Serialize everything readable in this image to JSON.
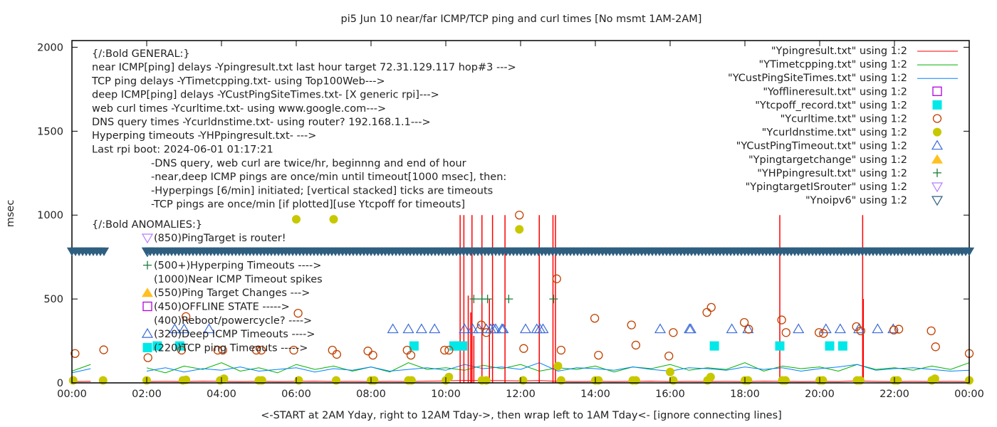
{
  "chart_data": {
    "type": "scatter",
    "title": "pi5 Jun 10  near/far ICMP/TCP ping and curl times [No msmt 1AM-2AM]",
    "xlabel": "<-START at 2AM Yday, right to 12AM Tday->, then wrap left to 1AM Tday<- [ignore connecting lines]",
    "ylabel": "msec",
    "xlim": [
      "00:00",
      "24:00"
    ],
    "ylim": [
      0,
      2040
    ],
    "x_ticks": [
      "00:00",
      "02:00",
      "04:00",
      "06:00",
      "08:00",
      "10:00",
      "12:00",
      "14:00",
      "16:00",
      "18:00",
      "20:00",
      "22:00",
      "00:00"
    ],
    "y_ticks": [
      0,
      500,
      1000,
      1500,
      2000
    ],
    "grid": false,
    "legend_placement": "top-right",
    "annotations_general": [
      "{/:Bold GENERAL:}",
      "near ICMP[ping] delays -Ypingresult.txt last hour target 72.31.129.117 hop#3 --->",
      "TCP ping delays -YTimetcpping.txt- using Top100Web--->",
      "deep ICMP[ping] delays -YCustPingSiteTimes.txt- [X generic rpi]--->",
      "web curl times -Ycurltime.txt- using www.google.com--->",
      "DNS query times -Ycurldnstime.txt- using router? 192.168.1.1--->",
      "Hyperping timeouts -YHPpingresult.txt- --->",
      "Last rpi boot: 2024-06-01 01:17:21"
    ],
    "annotations_notes": [
      "-DNS query, web curl are twice/hr, beginnng and end of hour",
      "-near,deep ICMP pings are once/min until timeout[1000 msec], then:",
      "  -Hyperpings [6/min] initiated; [vertical stacked] ticks are timeouts",
      "-TCP pings are once/min [if plotted][use Ytcpoff for timeouts]"
    ],
    "annotations_anomalies_title": "{/:Bold ANOMALIES:}",
    "annotations_anomalies": [
      {
        "marker": "triangle-down-open",
        "color": "#b47cff",
        "text": "(850)PingTarget is router!"
      },
      {
        "marker": "triangle-down-open",
        "color": "#2f5f80",
        "text": ""
      },
      {
        "marker": "plus",
        "color": "#1a7a3a",
        "text": "(500+)Hyperping Timeouts ---->"
      },
      {
        "marker": "none",
        "color": "",
        "text": "(1000)Near ICMP Timeout spikes"
      },
      {
        "marker": "triangle-up-filled",
        "color": "#ffc020",
        "text": "(550)Ping Target Changes --->"
      },
      {
        "marker": "square-open",
        "color": "#b000e0",
        "text": "(450)OFFLINE STATE ----->"
      },
      {
        "marker": "none",
        "color": "",
        "text": "(400)Reboot/powercycle? ---->"
      },
      {
        "marker": "triangle-up-open",
        "color": "#3a6ad8",
        "text": "(320)Deep ICMP Timeouts ---->"
      },
      {
        "marker": "square-filled",
        "color": "#00e8e8",
        "text": "(220)TCP ping Timeouts ----->"
      }
    ],
    "legend": [
      {
        "label": "\"Ypingresult.txt\" using 1:2",
        "style": "line",
        "color": "#ff0000"
      },
      {
        "label": "\"YTimetcpping.txt\" using 1:2",
        "style": "line",
        "color": "#00b000"
      },
      {
        "label": "\"YCustPingSiteTimes.txt\" using 1:2",
        "style": "line",
        "color": "#0080ff"
      },
      {
        "label": "\"Yofflineresult.txt\" using 1:2",
        "style": "square-open",
        "color": "#b000e0"
      },
      {
        "label": "\"Ytcpoff_record.txt\" using 1:2",
        "style": "square-filled",
        "color": "#00e8e8"
      },
      {
        "label": "\"Ycurltime.txt\" using 1:2",
        "style": "circle-open",
        "color": "#c04000"
      },
      {
        "label": "\"Ycurldnstime.txt\" using 1:2",
        "style": "circle-filled",
        "color": "#c8c800"
      },
      {
        "label": "\"YCustPingTimeout.txt\" using 1:2",
        "style": "triangle-up-open",
        "color": "#3a6ad8"
      },
      {
        "label": "\"Ypingtargetchange\" using 1:2",
        "style": "triangle-up-filled",
        "color": "#ffc020"
      },
      {
        "label": "\"YHPpingresult.txt\" using 1:2",
        "style": "plus",
        "color": "#1a7a3a"
      },
      {
        "label": "\"YpingtargetISrouter\" using 1:2",
        "style": "triangle-down-open",
        "color": "#b47cff"
      },
      {
        "label": "\"Ynoipv6\" using 1:2",
        "style": "triangle-down-open",
        "color": "#2f5f80"
      }
    ],
    "line_x": [
      "00:00",
      "00:30",
      "01:00",
      "01:30",
      "02:00",
      "02:30",
      "03:00",
      "03:30",
      "04:00",
      "04:30",
      "05:00",
      "05:30",
      "06:00",
      "06:30",
      "07:00",
      "07:30",
      "08:00",
      "08:30",
      "09:00",
      "09:30",
      "10:00",
      "10:30",
      "11:00",
      "11:30",
      "12:00",
      "12:30",
      "13:00",
      "13:30",
      "14:00",
      "14:30",
      "15:00",
      "15:30",
      "16:00",
      "16:30",
      "17:00",
      "17:30",
      "18:00",
      "18:30",
      "19:00",
      "19:30",
      "20:00",
      "20:30",
      "21:00",
      "21:30",
      "22:00",
      "22:30",
      "23:00",
      "23:30",
      "24:00"
    ],
    "series": [
      {
        "name": "\"Ypingresult.txt\" using 1:2",
        "color": "#ff0000",
        "values": [
          8,
          9,
          null,
          null,
          8,
          9,
          8,
          10,
          9,
          8,
          9,
          8,
          9,
          10,
          8,
          9,
          8,
          9,
          8,
          10,
          12,
          15,
          14,
          13,
          12,
          14,
          9,
          8,
          9,
          8,
          9,
          10,
          8,
          9,
          8,
          9,
          8,
          10,
          9,
          8,
          9,
          8,
          12,
          9,
          8,
          9,
          8,
          9,
          8
        ]
      },
      {
        "name": "\"YTimetcpping.txt\" using 1:2",
        "color": "#00b000",
        "values": [
          70,
          110,
          null,
          null,
          90,
          60,
          100,
          80,
          120,
          70,
          90,
          60,
          110,
          80,
          100,
          70,
          95,
          65,
          120,
          80,
          90,
          75,
          105,
          85,
          110,
          70,
          90,
          80,
          100,
          65,
          95,
          85,
          110,
          75,
          90,
          80,
          120,
          70,
          100,
          85,
          95,
          70,
          110,
          80,
          90,
          75,
          100,
          80,
          120
        ]
      },
      {
        "name": "\"YCustPingSiteTimes.txt\" using 1:2",
        "color": "#0080ff",
        "values": [
          60,
          85,
          null,
          null,
          70,
          90,
          65,
          85,
          75,
          95,
          70,
          80,
          90,
          65,
          85,
          75,
          95,
          70,
          80,
          90,
          75,
          110,
          85,
          95,
          80,
          120,
          70,
          90,
          85,
          75,
          95,
          80,
          70,
          90,
          85,
          75,
          95,
          80,
          90,
          70,
          85,
          95,
          110,
          75,
          85,
          90,
          80,
          70,
          75
        ]
      }
    ],
    "near_icmp_spikes": [
      {
        "x": "10:23",
        "y": 1000
      },
      {
        "x": "10:29",
        "y": 1000
      },
      {
        "x": "10:42",
        "y": 1000
      },
      {
        "x": "10:58",
        "y": 1000
      },
      {
        "x": "11:15",
        "y": 1000
      },
      {
        "x": "11:35",
        "y": 1000
      },
      {
        "x": "12:30",
        "y": 1000
      },
      {
        "x": "12:52",
        "y": 1000
      },
      {
        "x": "12:56",
        "y": 1000
      },
      {
        "x": "18:56",
        "y": 1000
      },
      {
        "x": "21:09",
        "y": 1000
      },
      {
        "x": "10:36",
        "y": 520
      },
      {
        "x": "10:40",
        "y": 420
      },
      {
        "x": "10:45",
        "y": 280
      },
      {
        "x": "11:10",
        "y": 500
      },
      {
        "x": "21:10",
        "y": 500
      }
    ],
    "curl_times": [
      {
        "x": "00:05",
        "y": 175
      },
      {
        "x": "00:51",
        "y": 197
      },
      {
        "x": "02:02",
        "y": 150
      },
      {
        "x": "02:56",
        "y": 195
      },
      {
        "x": "03:03",
        "y": 395
      },
      {
        "x": "03:54",
        "y": 195
      },
      {
        "x": "04:02",
        "y": 195
      },
      {
        "x": "04:56",
        "y": 195
      },
      {
        "x": "05:04",
        "y": 195
      },
      {
        "x": "05:56",
        "y": 195
      },
      {
        "x": "06:03",
        "y": 415
      },
      {
        "x": "06:58",
        "y": 195
      },
      {
        "x": "07:05",
        "y": 170
      },
      {
        "x": "07:55",
        "y": 190
      },
      {
        "x": "08:03",
        "y": 165
      },
      {
        "x": "08:58",
        "y": 195
      },
      {
        "x": "09:04",
        "y": 165
      },
      {
        "x": "09:58",
        "y": 195
      },
      {
        "x": "10:05",
        "y": 195
      },
      {
        "x": "10:57",
        "y": 345
      },
      {
        "x": "11:05",
        "y": 300
      },
      {
        "x": "11:58",
        "y": 1000
      },
      {
        "x": "12:05",
        "y": 205
      },
      {
        "x": "12:58",
        "y": 620
      },
      {
        "x": "13:05",
        "y": 195
      },
      {
        "x": "13:59",
        "y": 385
      },
      {
        "x": "14:05",
        "y": 165
      },
      {
        "x": "14:58",
        "y": 345
      },
      {
        "x": "15:05",
        "y": 225
      },
      {
        "x": "15:58",
        "y": 160
      },
      {
        "x": "16:05",
        "y": 300
      },
      {
        "x": "16:59",
        "y": 420
      },
      {
        "x": "17:06",
        "y": 450
      },
      {
        "x": "17:59",
        "y": 360
      },
      {
        "x": "18:06",
        "y": 320
      },
      {
        "x": "18:59",
        "y": 375
      },
      {
        "x": "19:06",
        "y": 300
      },
      {
        "x": "19:59",
        "y": 300
      },
      {
        "x": "20:06",
        "y": 295
      },
      {
        "x": "20:59",
        "y": 335
      },
      {
        "x": "21:06",
        "y": 310
      },
      {
        "x": "21:59",
        "y": 315
      },
      {
        "x": "22:07",
        "y": 320
      },
      {
        "x": "22:59",
        "y": 310
      },
      {
        "x": "23:06",
        "y": 215
      },
      {
        "x": "24:00",
        "y": 175
      }
    ],
    "dns_times": [
      {
        "x": "00:02",
        "y": 15
      },
      {
        "x": "00:50",
        "y": 15
      },
      {
        "x": "02:00",
        "y": 15
      },
      {
        "x": "02:58",
        "y": 15
      },
      {
        "x": "03:03",
        "y": 18
      },
      {
        "x": "03:58",
        "y": 15
      },
      {
        "x": "04:04",
        "y": 25
      },
      {
        "x": "05:00",
        "y": 15
      },
      {
        "x": "05:05",
        "y": 15
      },
      {
        "x": "06:00",
        "y": 975
      },
      {
        "x": "06:04",
        "y": 15
      },
      {
        "x": "07:00",
        "y": 975
      },
      {
        "x": "07:04",
        "y": 15
      },
      {
        "x": "08:00",
        "y": 15
      },
      {
        "x": "08:05",
        "y": 15
      },
      {
        "x": "09:00",
        "y": 15
      },
      {
        "x": "09:05",
        "y": 15
      },
      {
        "x": "10:00",
        "y": 15
      },
      {
        "x": "10:05",
        "y": 35
      },
      {
        "x": "10:58",
        "y": 15
      },
      {
        "x": "11:05",
        "y": 15
      },
      {
        "x": "11:58",
        "y": 915
      },
      {
        "x": "12:04",
        "y": 15
      },
      {
        "x": "13:00",
        "y": 100
      },
      {
        "x": "13:05",
        "y": 15
      },
      {
        "x": "14:00",
        "y": 15
      },
      {
        "x": "14:05",
        "y": 15
      },
      {
        "x": "15:00",
        "y": 15
      },
      {
        "x": "15:05",
        "y": 15
      },
      {
        "x": "16:00",
        "y": 65
      },
      {
        "x": "16:05",
        "y": 15
      },
      {
        "x": "17:00",
        "y": 15
      },
      {
        "x": "17:05",
        "y": 35
      },
      {
        "x": "18:00",
        "y": 15
      },
      {
        "x": "18:05",
        "y": 15
      },
      {
        "x": "19:00",
        "y": 15
      },
      {
        "x": "19:05",
        "y": 15
      },
      {
        "x": "20:00",
        "y": 15
      },
      {
        "x": "20:05",
        "y": 15
      },
      {
        "x": "21:00",
        "y": 15
      },
      {
        "x": "21:05",
        "y": 15
      },
      {
        "x": "22:00",
        "y": 15
      },
      {
        "x": "22:05",
        "y": 15
      },
      {
        "x": "23:00",
        "y": 15
      },
      {
        "x": "23:05",
        "y": 25
      },
      {
        "x": "24:00",
        "y": 15
      }
    ],
    "cust_ping_timeouts": {
      "y": 320,
      "x": [
        "02:45",
        "03:00",
        "03:40",
        "08:35",
        "09:00",
        "09:21",
        "09:42",
        "10:30",
        "10:43",
        "10:53",
        "11:05",
        "11:12",
        "11:17",
        "11:20",
        "11:30",
        "11:32",
        "12:08",
        "12:26",
        "12:31",
        "12:36",
        "15:44",
        "16:31",
        "16:33",
        "17:39",
        "18:05",
        "19:26",
        "20:10",
        "20:33",
        "21:03",
        "21:33",
        "21:58"
      ]
    },
    "tcp_timeouts": {
      "y": 220,
      "x": [
        "02:17",
        "02:53",
        "09:09",
        "10:13",
        "10:19",
        "10:27",
        "17:11",
        "18:56",
        "20:16",
        "20:37"
      ]
    },
    "hyperping_timeouts": {
      "y": 500,
      "x": [
        "10:45",
        "10:58",
        "11:07",
        "11:41",
        "12:53"
      ]
    },
    "noipv6": {
      "y": 785,
      "ranges": [
        [
          "00:00",
          "00:55"
        ],
        [
          "02:00",
          "24:00"
        ]
      ]
    }
  }
}
